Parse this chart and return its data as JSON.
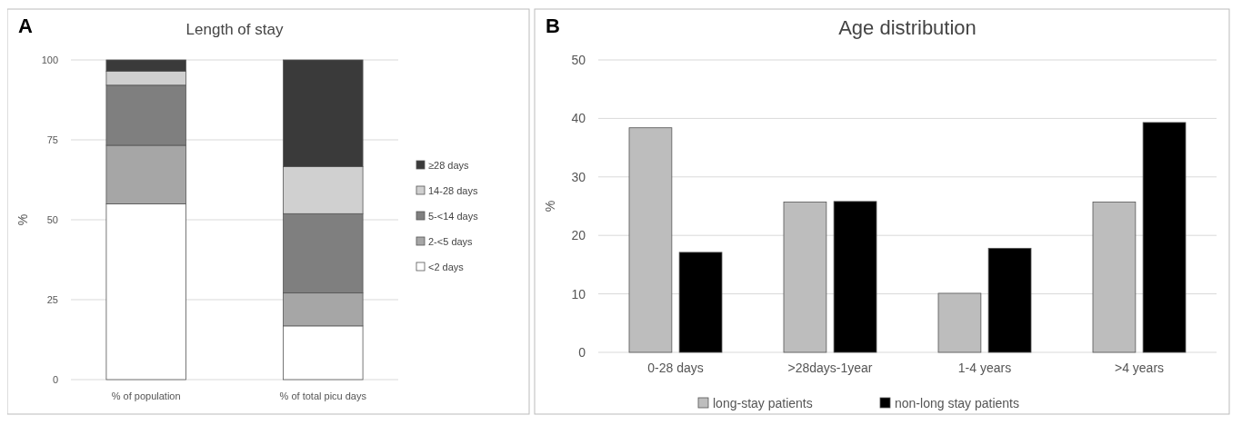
{
  "chart_data": [
    {
      "type": "bar",
      "title": "Length of stay",
      "annotations": [
        "A"
      ],
      "ylabel": "%",
      "categories": [
        "% of population",
        "% of total picu days"
      ],
      "stacked": true,
      "ylim": [
        0,
        100
      ],
      "yticks": [
        0,
        25,
        50,
        75,
        100
      ],
      "grid": "y",
      "legend": "right",
      "series": [
        {
          "name": "<2 days",
          "color": "#ffffff",
          "values": [
            55,
            16.8
          ]
        },
        {
          "name": "2-<5 days",
          "color": "#a6a6a6",
          "values": [
            18.3,
            10.3
          ]
        },
        {
          "name": "5-<14 days",
          "color": "#7f7f7f",
          "values": [
            18.8,
            24.8
          ]
        },
        {
          "name": "14-28 days",
          "color": "#d0d0d0",
          "values": [
            4.4,
            14.7
          ]
        },
        {
          "name": "≥28 days",
          "color": "#3a3a3a",
          "values": [
            3.5,
            33.4
          ]
        }
      ]
    },
    {
      "type": "bar",
      "title": "Age distribution",
      "annotations": [
        "B"
      ],
      "ylabel": "%",
      "categories": [
        "0-28 days",
        ">28days-1year",
        "1-4 years",
        ">4 years"
      ],
      "ylim": [
        0,
        50
      ],
      "yticks": [
        0,
        10,
        20,
        30,
        40,
        50
      ],
      "grid": "y",
      "legend": "bottom",
      "series": [
        {
          "name": "long-stay patients",
          "color": "#bdbdbd",
          "values": [
            38.4,
            25.7,
            10.1,
            25.7
          ]
        },
        {
          "name": "non-long stay patients",
          "color": "#000000",
          "values": [
            17.1,
            25.8,
            17.8,
            39.3
          ]
        }
      ]
    }
  ]
}
